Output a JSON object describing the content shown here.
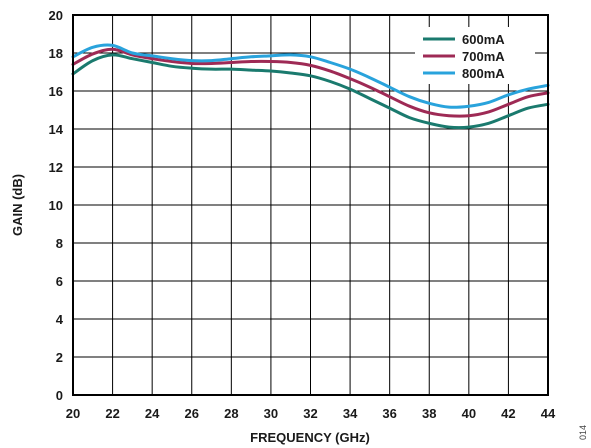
{
  "figure_id": "014",
  "chart_data": {
    "type": "line",
    "title": "",
    "xlabel": "FREQUENCY (GHz)",
    "ylabel": "GAIN (dB)",
    "xlim": [
      20,
      44
    ],
    "ylim": [
      0,
      20
    ],
    "xticks": [
      "20",
      "22",
      "24",
      "26",
      "28",
      "30",
      "32",
      "34",
      "36",
      "38",
      "40",
      "42",
      "44"
    ],
    "yticks": [
      "0",
      "2",
      "4",
      "6",
      "8",
      "10",
      "12",
      "14",
      "16",
      "18",
      "20"
    ],
    "grid": true,
    "legend_position": "top-right",
    "x": [
      20,
      21,
      22,
      23,
      24,
      25,
      26,
      27,
      28,
      29,
      30,
      31,
      32,
      33,
      34,
      35,
      36,
      37,
      38,
      39,
      40,
      41,
      42,
      43,
      44
    ],
    "series": [
      {
        "name": "600mA",
        "color": "#1a7a6e",
        "values": [
          16.9,
          17.6,
          17.9,
          17.7,
          17.5,
          17.3,
          17.2,
          17.15,
          17.15,
          17.1,
          17.05,
          16.95,
          16.8,
          16.5,
          16.1,
          15.6,
          15.1,
          14.6,
          14.3,
          14.1,
          14.1,
          14.3,
          14.7,
          15.1,
          15.3
        ]
      },
      {
        "name": "700mA",
        "color": "#9e2a55",
        "values": [
          17.4,
          17.95,
          18.2,
          17.9,
          17.7,
          17.55,
          17.45,
          17.45,
          17.5,
          17.55,
          17.55,
          17.5,
          17.35,
          17.05,
          16.65,
          16.2,
          15.7,
          15.2,
          14.85,
          14.7,
          14.7,
          14.9,
          15.3,
          15.7,
          15.9
        ]
      },
      {
        "name": "800mA",
        "color": "#29a3dc",
        "values": [
          17.8,
          18.3,
          18.4,
          18.0,
          17.85,
          17.7,
          17.6,
          17.6,
          17.7,
          17.8,
          17.85,
          17.9,
          17.8,
          17.5,
          17.15,
          16.7,
          16.2,
          15.7,
          15.35,
          15.15,
          15.2,
          15.4,
          15.8,
          16.1,
          16.3
        ]
      }
    ]
  }
}
